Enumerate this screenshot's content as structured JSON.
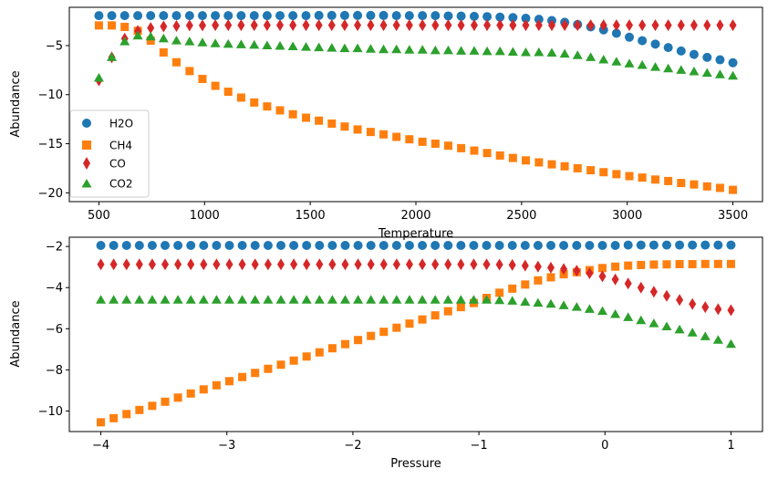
{
  "chart_data": [
    {
      "type": "scatter",
      "title": "",
      "xlabel": "Temperature",
      "ylabel": "Abundance",
      "xlim": [
        360,
        3640
      ],
      "ylim": [
        -20.9,
        -1.1
      ],
      "xticks": [
        500,
        1000,
        1500,
        2000,
        2500,
        3000,
        3500
      ],
      "yticks": [
        -5,
        -10,
        -15,
        -20
      ],
      "xtick_labels": [
        "500",
        "1000",
        "1500",
        "2000",
        "2500",
        "3000",
        "3500"
      ],
      "ytick_labels": [
        "−5",
        "−10",
        "−15",
        "−20"
      ],
      "grid": false,
      "legend": "lower-left",
      "x": [
        500,
        561,
        622,
        684,
        745,
        806,
        867,
        929,
        990,
        1051,
        1112,
        1173,
        1235,
        1296,
        1357,
        1418,
        1480,
        1541,
        1602,
        1663,
        1724,
        1786,
        1847,
        1908,
        1969,
        2031,
        2092,
        2153,
        2214,
        2276,
        2337,
        2398,
        2459,
        2520,
        2582,
        2643,
        2704,
        2765,
        2827,
        2888,
        2949,
        3010,
        3071,
        3133,
        3194,
        3255,
        3316,
        3378,
        3439,
        3500
      ],
      "series": [
        {
          "name": "H2O",
          "color": "#1f77b4",
          "marker": "circle",
          "values": [
            -1.95,
            -1.95,
            -1.95,
            -1.95,
            -1.95,
            -1.95,
            -1.95,
            -1.95,
            -1.95,
            -1.95,
            -1.95,
            -1.95,
            -1.95,
            -1.95,
            -1.95,
            -1.95,
            -1.95,
            -1.93,
            -1.93,
            -1.93,
            -1.93,
            -1.93,
            -1.93,
            -1.95,
            -1.95,
            -1.95,
            -1.95,
            -1.98,
            -2.0,
            -2.02,
            -2.05,
            -2.1,
            -2.15,
            -2.22,
            -2.32,
            -2.45,
            -2.62,
            -2.85,
            -3.1,
            -3.4,
            -3.75,
            -4.15,
            -4.5,
            -4.85,
            -5.2,
            -5.55,
            -5.9,
            -6.2,
            -6.45,
            -6.75
          ]
        },
        {
          "name": "CH4",
          "color": "#ff7f0e",
          "marker": "square",
          "values": [
            -2.95,
            -2.95,
            -3.1,
            -3.5,
            -4.5,
            -5.7,
            -6.7,
            -7.6,
            -8.4,
            -9.1,
            -9.7,
            -10.3,
            -10.8,
            -11.2,
            -11.6,
            -12.0,
            -12.35,
            -12.65,
            -12.95,
            -13.25,
            -13.55,
            -13.8,
            -14.05,
            -14.3,
            -14.55,
            -14.8,
            -15.0,
            -15.2,
            -15.45,
            -15.7,
            -15.95,
            -16.2,
            -16.45,
            -16.7,
            -16.9,
            -17.1,
            -17.3,
            -17.5,
            -17.7,
            -17.9,
            -18.1,
            -18.3,
            -18.45,
            -18.65,
            -18.8,
            -19.0,
            -19.15,
            -19.35,
            -19.5,
            -19.7
          ]
        },
        {
          "name": "CO",
          "color": "#d62728",
          "marker": "thin_diamond",
          "values": [
            -8.55,
            -6.2,
            -4.3,
            -3.5,
            -3.2,
            -3.05,
            -3.0,
            -2.95,
            -2.95,
            -2.93,
            -2.93,
            -2.93,
            -2.93,
            -2.93,
            -2.93,
            -2.93,
            -2.93,
            -2.93,
            -2.93,
            -2.93,
            -2.93,
            -2.93,
            -2.93,
            -2.93,
            -2.93,
            -2.93,
            -2.93,
            -2.93,
            -2.93,
            -2.93,
            -2.93,
            -2.93,
            -2.93,
            -2.93,
            -2.93,
            -2.93,
            -2.93,
            -2.93,
            -2.93,
            -2.93,
            -2.93,
            -2.93,
            -2.93,
            -2.93,
            -2.93,
            -2.93,
            -2.93,
            -2.93,
            -2.93,
            -2.93
          ]
        },
        {
          "name": "CO2",
          "color": "#2ca02c",
          "marker": "triangle",
          "values": [
            -8.3,
            -6.2,
            -4.6,
            -4.0,
            -4.1,
            -4.3,
            -4.5,
            -4.6,
            -4.7,
            -4.8,
            -4.85,
            -4.9,
            -4.95,
            -5.0,
            -5.05,
            -5.1,
            -5.15,
            -5.2,
            -5.25,
            -5.3,
            -5.3,
            -5.35,
            -5.4,
            -5.4,
            -5.45,
            -5.45,
            -5.5,
            -5.5,
            -5.55,
            -5.55,
            -5.6,
            -5.6,
            -5.65,
            -5.7,
            -5.7,
            -5.75,
            -5.85,
            -6.0,
            -6.2,
            -6.45,
            -6.65,
            -6.85,
            -7.0,
            -7.2,
            -7.35,
            -7.5,
            -7.65,
            -7.8,
            -7.95,
            -8.1
          ]
        }
      ]
    },
    {
      "type": "scatter",
      "title": "",
      "xlabel": "Pressure",
      "ylabel": "Abundance",
      "xlim": [
        -4.25,
        1.25
      ],
      "ylim": [
        -11.0,
        -1.55
      ],
      "xticks": [
        -4,
        -3,
        -2,
        -1,
        0,
        1
      ],
      "yticks": [
        -2,
        -4,
        -6,
        -8,
        -10
      ],
      "xtick_labels": [
        "−4",
        "−3",
        "−2",
        "−1",
        "0",
        "1"
      ],
      "ytick_labels": [
        "−2",
        "−4",
        "−6",
        "−8",
        "−10"
      ],
      "grid": false,
      "legend": "none",
      "x": [
        -4.0,
        -3.898,
        -3.796,
        -3.694,
        -3.592,
        -3.49,
        -3.388,
        -3.286,
        -3.184,
        -3.082,
        -2.98,
        -2.878,
        -2.776,
        -2.673,
        -2.571,
        -2.469,
        -2.367,
        -2.265,
        -2.163,
        -2.061,
        -1.959,
        -1.857,
        -1.755,
        -1.653,
        -1.551,
        -1.449,
        -1.347,
        -1.245,
        -1.143,
        -1.041,
        -0.939,
        -0.837,
        -0.735,
        -0.633,
        -0.531,
        -0.429,
        -0.327,
        -0.224,
        -0.122,
        -0.02,
        0.082,
        0.184,
        0.286,
        0.388,
        0.49,
        0.592,
        0.694,
        0.796,
        0.898,
        1.0
      ],
      "series": [
        {
          "name": "H2O",
          "color": "#1f77b4",
          "marker": "circle",
          "values": [
            -1.95,
            -1.95,
            -1.95,
            -1.95,
            -1.95,
            -1.95,
            -1.95,
            -1.95,
            -1.95,
            -1.95,
            -1.95,
            -1.95,
            -1.95,
            -1.95,
            -1.95,
            -1.95,
            -1.95,
            -1.95,
            -1.95,
            -1.95,
            -1.95,
            -1.95,
            -1.95,
            -1.95,
            -1.95,
            -1.95,
            -1.95,
            -1.95,
            -1.95,
            -1.95,
            -1.95,
            -1.95,
            -1.95,
            -1.95,
            -1.95,
            -1.95,
            -1.95,
            -1.95,
            -1.95,
            -1.95,
            -1.95,
            -1.93,
            -1.93,
            -1.93,
            -1.93,
            -1.93,
            -1.93,
            -1.93,
            -1.93,
            -1.93
          ]
        },
        {
          "name": "CH4",
          "color": "#ff7f0e",
          "marker": "square",
          "values": [
            -10.55,
            -10.35,
            -10.15,
            -9.95,
            -9.75,
            -9.55,
            -9.35,
            -9.15,
            -8.95,
            -8.75,
            -8.55,
            -8.35,
            -8.15,
            -7.95,
            -7.75,
            -7.55,
            -7.35,
            -7.15,
            -6.95,
            -6.75,
            -6.55,
            -6.35,
            -6.15,
            -5.95,
            -5.75,
            -5.55,
            -5.35,
            -5.15,
            -4.95,
            -4.75,
            -4.5,
            -4.25,
            -4.05,
            -3.85,
            -3.65,
            -3.5,
            -3.35,
            -3.25,
            -3.15,
            -3.05,
            -2.98,
            -2.93,
            -2.9,
            -2.88,
            -2.87,
            -2.86,
            -2.86,
            -2.85,
            -2.85,
            -2.85
          ]
        },
        {
          "name": "CO",
          "color": "#d62728",
          "marker": "thin_diamond",
          "values": [
            -2.87,
            -2.87,
            -2.87,
            -2.87,
            -2.87,
            -2.87,
            -2.87,
            -2.87,
            -2.87,
            -2.87,
            -2.87,
            -2.87,
            -2.87,
            -2.87,
            -2.87,
            -2.87,
            -2.87,
            -2.87,
            -2.87,
            -2.87,
            -2.87,
            -2.87,
            -2.87,
            -2.87,
            -2.87,
            -2.87,
            -2.87,
            -2.87,
            -2.87,
            -2.87,
            -2.87,
            -2.88,
            -2.9,
            -2.93,
            -2.98,
            -3.03,
            -3.1,
            -3.18,
            -3.3,
            -3.45,
            -3.6,
            -3.8,
            -4.0,
            -4.2,
            -4.4,
            -4.6,
            -4.8,
            -4.95,
            -5.05,
            -5.1
          ]
        },
        {
          "name": "CO2",
          "color": "#2ca02c",
          "marker": "triangle",
          "values": [
            -4.6,
            -4.6,
            -4.6,
            -4.6,
            -4.6,
            -4.6,
            -4.6,
            -4.6,
            -4.6,
            -4.6,
            -4.6,
            -4.6,
            -4.6,
            -4.6,
            -4.6,
            -4.6,
            -4.6,
            -4.6,
            -4.6,
            -4.6,
            -4.6,
            -4.6,
            -4.6,
            -4.6,
            -4.6,
            -4.6,
            -4.6,
            -4.6,
            -4.6,
            -4.6,
            -4.6,
            -4.62,
            -4.65,
            -4.7,
            -4.75,
            -4.8,
            -4.87,
            -4.95,
            -5.05,
            -5.15,
            -5.3,
            -5.45,
            -5.6,
            -5.75,
            -5.9,
            -6.05,
            -6.2,
            -6.38,
            -6.55,
            -6.75
          ]
        }
      ]
    }
  ]
}
